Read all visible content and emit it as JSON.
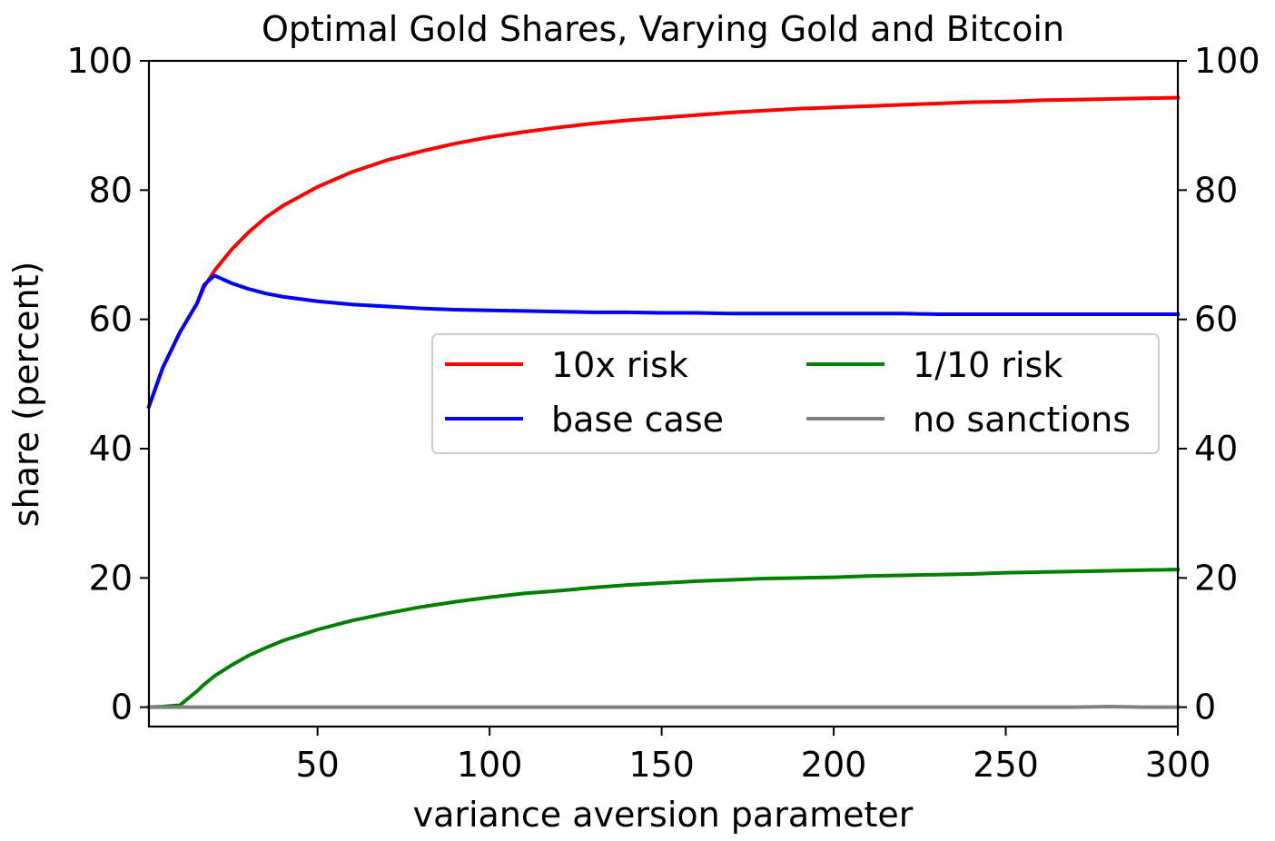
{
  "chart_data": {
    "type": "line",
    "title": "Optimal Gold Shares, Varying Gold and Bitcoin",
    "xlabel": "variance aversion parameter",
    "ylabel": "share (percent)",
    "xlim": [
      1,
      300
    ],
    "ylim": [
      -3,
      100
    ],
    "x_ticks": [
      50,
      100,
      150,
      200,
      250,
      300
    ],
    "y_ticks": [
      0,
      20,
      40,
      60,
      80,
      100
    ],
    "y_ticks_right": true,
    "grid": false,
    "legend_position": "center-right",
    "legend_columns": 2,
    "x": [
      1,
      5,
      10,
      15,
      17,
      20,
      25,
      30,
      35,
      40,
      50,
      60,
      70,
      80,
      90,
      100,
      110,
      120,
      130,
      140,
      150,
      160,
      170,
      180,
      190,
      200,
      210,
      220,
      230,
      240,
      250,
      260,
      270,
      280,
      290,
      300
    ],
    "series": [
      {
        "name": "10x risk",
        "color": "#ff0000",
        "values": [
          46.5,
          52.5,
          58.0,
          62.5,
          65.0,
          67.5,
          70.8,
          73.5,
          75.8,
          77.6,
          80.5,
          82.8,
          84.6,
          86.0,
          87.2,
          88.2,
          89.0,
          89.7,
          90.3,
          90.8,
          91.2,
          91.6,
          92.0,
          92.3,
          92.6,
          92.8,
          93.0,
          93.2,
          93.4,
          93.6,
          93.7,
          93.9,
          94.0,
          94.1,
          94.2,
          94.3
        ]
      },
      {
        "name": "base case",
        "color": "#0000ff",
        "values": [
          46.5,
          52.5,
          58.0,
          62.5,
          65.3,
          66.8,
          65.6,
          64.7,
          64.0,
          63.5,
          62.8,
          62.3,
          62.0,
          61.7,
          61.5,
          61.4,
          61.3,
          61.2,
          61.1,
          61.1,
          61.0,
          61.0,
          60.9,
          60.9,
          60.9,
          60.9,
          60.9,
          60.9,
          60.8,
          60.8,
          60.8,
          60.8,
          60.8,
          60.8,
          60.8,
          60.8
        ]
      },
      {
        "name": "1/10 risk",
        "color": "#008000",
        "values": [
          0.0,
          0.1,
          0.3,
          2.5,
          3.5,
          4.8,
          6.5,
          8.0,
          9.2,
          10.3,
          12.0,
          13.4,
          14.5,
          15.5,
          16.3,
          17.0,
          17.6,
          18.0,
          18.5,
          18.9,
          19.2,
          19.5,
          19.7,
          19.9,
          20.0,
          20.1,
          20.3,
          20.4,
          20.5,
          20.6,
          20.8,
          20.9,
          21.0,
          21.1,
          21.2,
          21.3
        ]
      },
      {
        "name": "no sanctions",
        "color": "#808080",
        "values": [
          0.0,
          0.0,
          0.0,
          0.0,
          0.0,
          0.0,
          0.0,
          0.0,
          0.0,
          0.0,
          0.0,
          0.0,
          0.0,
          0.0,
          0.0,
          0.0,
          0.0,
          0.0,
          0.0,
          0.0,
          0.0,
          0.0,
          0.0,
          0.0,
          0.0,
          0.0,
          0.0,
          0.0,
          0.0,
          0.0,
          0.0,
          0.0,
          0.0,
          0.1,
          0.0,
          0.0
        ]
      }
    ]
  }
}
